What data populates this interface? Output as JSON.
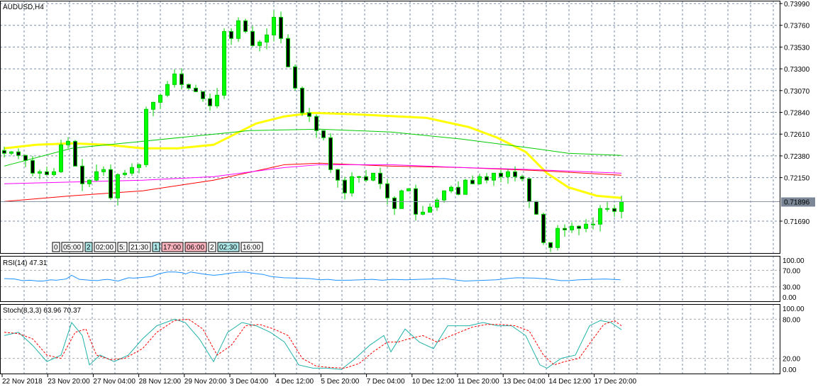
{
  "chart_data": [
    {
      "type": "candlestick",
      "title": "AUDUSD,H4",
      "ylim": [
        0.7143,
        0.74
      ],
      "y_ticks": [
        "0.73990",
        "0.73760",
        "0.73530",
        "0.73300",
        "0.73070",
        "0.72840",
        "0.72610",
        "0.72380",
        "0.72150",
        "0.71690"
      ],
      "current_price": "0.71896",
      "x_ticks": [
        "22 Nov 2018",
        "23 Nov 20:00",
        "27 Nov 04:00",
        "28 Nov 12:00",
        "29 Nov 20:00",
        "3 Dec 04:00",
        "4 Dec 12:00",
        "5 Dec 20:00",
        "7 Dec 04:00",
        "10 Dec 12:00",
        "11 Dec 20:00",
        "13 Dec 04:00",
        "14 Dec 12:00",
        "17 Dec 20:00"
      ],
      "closes": [
        0.72407,
        0.72422,
        0.72385,
        0.72332,
        0.72197,
        0.72212,
        0.72182,
        0.72212,
        0.72497,
        0.72534,
        0.72272,
        0.72085,
        0.72123,
        0.72212,
        0.72235,
        0.71935,
        0.72182,
        0.72197,
        0.72257,
        0.72287,
        0.72872,
        0.72946,
        0.73021,
        0.73134,
        0.73246,
        0.73134,
        0.73096,
        0.73059,
        0.72984,
        0.72909,
        0.73021,
        0.73695,
        0.73621,
        0.73808,
        0.73695,
        0.73546,
        0.73583,
        0.73658,
        0.73845,
        0.73621,
        0.73321,
        0.73096,
        0.72834,
        0.72797,
        0.72647,
        0.72572,
        0.72235,
        0.72123,
        0.71988,
        0.7216,
        0.7216,
        0.72123,
        0.72197,
        0.72085,
        0.71935,
        0.71823,
        0.7201,
        0.72033,
        0.71763,
        0.71785,
        0.71838,
        0.71913,
        0.7201,
        0.72048,
        0.71973,
        0.72123,
        0.72085,
        0.7216,
        0.72123,
        0.72197,
        0.7216,
        0.72212,
        0.7216,
        0.72138,
        0.71898,
        0.71763,
        0.71463,
        0.71411,
        0.71613,
        0.71598,
        0.71636,
        0.71613,
        0.71658,
        0.71658,
        0.71823,
        0.71823,
        0.71793,
        0.71896
      ],
      "moving_averages": [
        {
          "color": "#ffff00",
          "points": [
            [
              0,
              0.7246
            ],
            [
              4.5,
              0.72497
            ],
            [
              9.5,
              0.72512
            ],
            [
              14.5,
              0.72497
            ],
            [
              19.5,
              0.7246
            ],
            [
              24.5,
              0.7246
            ],
            [
              29.5,
              0.72497
            ],
            [
              32.5,
              0.72609
            ],
            [
              35.5,
              0.72722
            ],
            [
              39.5,
              0.72797
            ],
            [
              43.5,
              0.72834
            ],
            [
              49.5,
              0.72819
            ],
            [
              59.5,
              0.72782
            ],
            [
              65.5,
              0.72684
            ],
            [
              69.5,
              0.72572
            ],
            [
              73.5,
              0.72422
            ],
            [
              76.5,
              0.72197
            ],
            [
              79.5,
              0.72048
            ],
            [
              83.5,
              0.71958
            ],
            [
              87,
              0.71935
            ]
          ]
        },
        {
          "color": "#00cc00",
          "points": [
            [
              0,
              0.72272
            ],
            [
              9.5,
              0.7246
            ],
            [
              19.5,
              0.72534
            ],
            [
              29.5,
              0.72609
            ],
            [
              34.5,
              0.72647
            ],
            [
              44.5,
              0.72662
            ],
            [
              54.5,
              0.72632
            ],
            [
              64.5,
              0.72557
            ],
            [
              74.5,
              0.7246
            ],
            [
              79.5,
              0.72407
            ],
            [
              87,
              0.72385
            ]
          ]
        },
        {
          "color": "#ff0000",
          "points": [
            [
              0,
              0.71898
            ],
            [
              9.5,
              0.71958
            ],
            [
              19.5,
              0.7201
            ],
            [
              29.5,
              0.72123
            ],
            [
              39.5,
              0.72287
            ],
            [
              44.5,
              0.72302
            ],
            [
              54.5,
              0.72272
            ],
            [
              64.5,
              0.72257
            ],
            [
              74.5,
              0.72227
            ],
            [
              87,
              0.72175
            ]
          ]
        },
        {
          "color": "#ff00ff",
          "points": [
            [
              0,
              0.72085
            ],
            [
              19.5,
              0.72123
            ],
            [
              29.5,
              0.7216
            ],
            [
              39.5,
              0.72257
            ],
            [
              44.5,
              0.72287
            ],
            [
              54.5,
              0.72287
            ],
            [
              64.5,
              0.72257
            ],
            [
              74.5,
              0.72235
            ],
            [
              87,
              0.72197
            ]
          ]
        }
      ]
    },
    {
      "type": "line",
      "title": "RSI(14) 47.31",
      "ylim": [
        0,
        100
      ],
      "y_ticks": [
        "100.00",
        "70.00",
        "30.00",
        "0.00"
      ],
      "series": [
        {
          "color": "#1e90ff",
          "points": [
            [
              0,
              50
            ],
            [
              4,
              49
            ],
            [
              7,
              45
            ],
            [
              10,
              46
            ],
            [
              13,
              44
            ],
            [
              15,
              44
            ],
            [
              18,
              47
            ],
            [
              20,
              46
            ],
            [
              24,
              49
            ],
            [
              26,
              58
            ],
            [
              29,
              48
            ],
            [
              33,
              46
            ],
            [
              36,
              45
            ],
            [
              38,
              47
            ],
            [
              40,
              48
            ],
            [
              44,
              44
            ],
            [
              46,
              48
            ],
            [
              48,
              52
            ],
            [
              50,
              51
            ],
            [
              54,
              53
            ],
            [
              57,
              55
            ],
            [
              60,
              62
            ],
            [
              63,
              66
            ],
            [
              66,
              66
            ],
            [
              69,
              64
            ],
            [
              70,
              61
            ],
            [
              72,
              66
            ],
            [
              75,
              63
            ],
            [
              78,
              60
            ],
            [
              81,
              58
            ],
            [
              84,
              60
            ],
            [
              87,
              63
            ],
            [
              90,
              65
            ],
            [
              93,
              66
            ],
            [
              97,
              62
            ],
            [
              100,
              60
            ],
            [
              103,
              55
            ],
            [
              108,
              52
            ],
            [
              113,
              51
            ],
            [
              118,
              50
            ],
            [
              122,
              47
            ],
            [
              125,
              48
            ],
            [
              128,
              46
            ],
            [
              133,
              46
            ],
            [
              138,
              47
            ],
            [
              142,
              48
            ],
            [
              146,
              46
            ],
            [
              150,
              48
            ],
            [
              155,
              47
            ],
            [
              160,
              48
            ],
            [
              165,
              49
            ],
            [
              170,
              50
            ],
            [
              175,
              46
            ],
            [
              178,
              44
            ],
            [
              182,
              45
            ],
            [
              186,
              46
            ],
            [
              190,
              47
            ],
            [
              194,
              50
            ],
            [
              198,
              52
            ],
            [
              205,
              51
            ],
            [
              210,
              49
            ],
            [
              215,
              45
            ],
            [
              218,
              45
            ],
            [
              222,
              47
            ],
            [
              227,
              48
            ],
            [
              232,
              49
            ],
            [
              238,
              47
            ]
          ]
        }
      ]
    },
    {
      "type": "line",
      "title": "Stoch(8,3,3) 63.96 70.37",
      "ylim": [
        0,
        100
      ],
      "y_ticks": [
        "100.00",
        "80.00",
        "20.00",
        "0.00"
      ],
      "series": [
        {
          "color": "#20b2aa",
          "points": [
            [
              0,
              55
            ],
            [
              2,
              60
            ],
            [
              4,
              40
            ],
            [
              6,
              15
            ],
            [
              8,
              25
            ],
            [
              9.5,
              75
            ],
            [
              11,
              55
            ],
            [
              12,
              10
            ],
            [
              13.5,
              25
            ],
            [
              15.5,
              15
            ],
            [
              17.5,
              25
            ],
            [
              19.5,
              50
            ],
            [
              21.5,
              70
            ],
            [
              24,
              80
            ],
            [
              25.5,
              75
            ],
            [
              27.5,
              50
            ],
            [
              29.5,
              15
            ],
            [
              31.5,
              60
            ],
            [
              33.5,
              75
            ],
            [
              35.5,
              70
            ],
            [
              37.5,
              60
            ],
            [
              39.5,
              45
            ],
            [
              41.5,
              10
            ],
            [
              43.5,
              5
            ],
            [
              45.5,
              5
            ],
            [
              47.5,
              3
            ],
            [
              49.5,
              20
            ],
            [
              51.5,
              40
            ],
            [
              53.5,
              55
            ],
            [
              54.5,
              30
            ],
            [
              56.5,
              65
            ],
            [
              58.5,
              45
            ],
            [
              60.5,
              35
            ],
            [
              62.5,
              70
            ],
            [
              65.5,
              70
            ],
            [
              67.5,
              75
            ],
            [
              69.5,
              70
            ],
            [
              71.5,
              70
            ],
            [
              73.5,
              55
            ],
            [
              75.5,
              10
            ],
            [
              76.5,
              5
            ],
            [
              78.5,
              20
            ],
            [
              80.5,
              25
            ],
            [
              82.5,
              70
            ],
            [
              84,
              78
            ],
            [
              85.5,
              75
            ],
            [
              87,
              64
            ]
          ]
        },
        {
          "color": "#ff0000",
          "points": [
            [
              0,
              60
            ],
            [
              2,
              58
            ],
            [
              4,
              50
            ],
            [
              6,
              25
            ],
            [
              8,
              20
            ],
            [
              10,
              60
            ],
            [
              11.5,
              65
            ],
            [
              13,
              25
            ],
            [
              15,
              18
            ],
            [
              17,
              20
            ],
            [
              19.5,
              35
            ],
            [
              21.5,
              60
            ],
            [
              24,
              78
            ],
            [
              26,
              80
            ],
            [
              28,
              65
            ],
            [
              30,
              25
            ],
            [
              32,
              40
            ],
            [
              34,
              70
            ],
            [
              36,
              72
            ],
            [
              38,
              65
            ],
            [
              40,
              55
            ],
            [
              42,
              20
            ],
            [
              44,
              8
            ],
            [
              46,
              6
            ],
            [
              48,
              5
            ],
            [
              50,
              12
            ],
            [
              52,
              30
            ],
            [
              54,
              45
            ],
            [
              55.5,
              45
            ],
            [
              57,
              50
            ],
            [
              59,
              55
            ],
            [
              61,
              45
            ],
            [
              63,
              55
            ],
            [
              66,
              68
            ],
            [
              68,
              72
            ],
            [
              70,
              72
            ],
            [
              72,
              70
            ],
            [
              74,
              62
            ],
            [
              76,
              25
            ],
            [
              77.5,
              10
            ],
            [
              79,
              15
            ],
            [
              81,
              20
            ],
            [
              83,
              50
            ],
            [
              84.5,
              72
            ],
            [
              86,
              78
            ],
            [
              87,
              70
            ]
          ]
        }
      ]
    }
  ],
  "sessions": [
    "0",
    "05:00",
    "2",
    "02:00",
    "5:",
    "21:30",
    "1",
    "17:00",
    "06:00",
    "2",
    "02:30",
    "16:00"
  ],
  "colors": {
    "bull": "#00ff00",
    "bear": "#000000",
    "wick": "#00cc00",
    "grid": "#7a8ea8"
  }
}
